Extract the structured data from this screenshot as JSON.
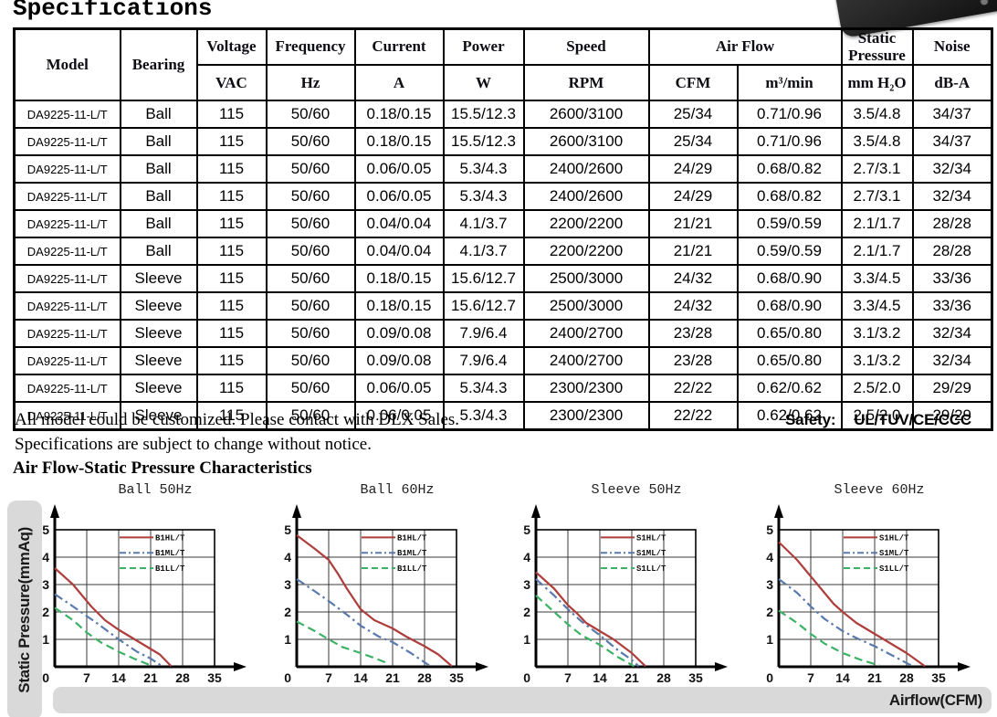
{
  "page": {
    "title": "Specifications",
    "notes": [
      "All model could be customized. Please contact with DLX Sales.",
      "Specifications are subject to change without notice."
    ],
    "safety_label": "Safety:",
    "safety_value": "UL/TUV/CE/CCC",
    "section_title": "Air Flow-Static Pressure Characteristics"
  },
  "table": {
    "header": {
      "model": "Model",
      "bearing": "Bearing",
      "cols": [
        {
          "label": "Voltage",
          "unit": "VAC"
        },
        {
          "label": "Frequency",
          "unit": "Hz"
        },
        {
          "label": "Current",
          "unit": "A"
        },
        {
          "label": "Power",
          "unit": "W"
        },
        {
          "label": "Speed",
          "unit": "RPM"
        }
      ],
      "airflow": {
        "label": "Air Flow",
        "units": [
          "CFM",
          "m³/min"
        ]
      },
      "static_pressure": {
        "label": "Static Pressure",
        "unit": "mm H₂O"
      },
      "noise": {
        "label": "Noise",
        "unit": "dB-A"
      }
    },
    "rows": [
      [
        "DA9225-11-L/T",
        "Ball",
        "115",
        "50/60",
        "0.18/0.15",
        "15.5/12.3",
        "2600/3100",
        "25/34",
        "0.71/0.96",
        "3.5/4.8",
        "34/37"
      ],
      [
        "DA9225-11-L/T",
        "Ball",
        "115",
        "50/60",
        "0.18/0.15",
        "15.5/12.3",
        "2600/3100",
        "25/34",
        "0.71/0.96",
        "3.5/4.8",
        "34/37"
      ],
      [
        "DA9225-11-L/T",
        "Ball",
        "115",
        "50/60",
        "0.06/0.05",
        "5.3/4.3",
        "2400/2600",
        "24/29",
        "0.68/0.82",
        "2.7/3.1",
        "32/34"
      ],
      [
        "DA9225-11-L/T",
        "Ball",
        "115",
        "50/60",
        "0.06/0.05",
        "5.3/4.3",
        "2400/2600",
        "24/29",
        "0.68/0.82",
        "2.7/3.1",
        "32/34"
      ],
      [
        "DA9225-11-L/T",
        "Ball",
        "115",
        "50/60",
        "0.04/0.04",
        "4.1/3.7",
        "2200/2200",
        "21/21",
        "0.59/0.59",
        "2.1/1.7",
        "28/28"
      ],
      [
        "DA9225-11-L/T",
        "Ball",
        "115",
        "50/60",
        "0.04/0.04",
        "4.1/3.7",
        "2200/2200",
        "21/21",
        "0.59/0.59",
        "2.1/1.7",
        "28/28"
      ],
      [
        "DA9225-11-L/T",
        "Sleeve",
        "115",
        "50/60",
        "0.18/0.15",
        "15.6/12.7",
        "2500/3000",
        "24/32",
        "0.68/0.90",
        "3.3/4.5",
        "33/36"
      ],
      [
        "DA9225-11-L/T",
        "Sleeve",
        "115",
        "50/60",
        "0.18/0.15",
        "15.6/12.7",
        "2500/3000",
        "24/32",
        "0.68/0.90",
        "3.3/4.5",
        "33/36"
      ],
      [
        "DA9225-11-L/T",
        "Sleeve",
        "115",
        "50/60",
        "0.09/0.08",
        "7.9/6.4",
        "2400/2700",
        "23/28",
        "0.65/0.80",
        "3.1/3.2",
        "32/34"
      ],
      [
        "DA9225-11-L/T",
        "Sleeve",
        "115",
        "50/60",
        "0.09/0.08",
        "7.9/6.4",
        "2400/2700",
        "23/28",
        "0.65/0.80",
        "3.1/3.2",
        "32/34"
      ],
      [
        "DA9225-11-L/T",
        "Sleeve",
        "115",
        "50/60",
        "0.06/0.05",
        "5.3/4.3",
        "2300/2300",
        "22/22",
        "0.62/0.62",
        "2.5/2.0",
        "29/29"
      ],
      [
        "DA9225-11-L/T",
        "Sleeve",
        "115",
        "50/60",
        "0.06/0.05",
        "5.3/4.3",
        "2300/2300",
        "22/22",
        "0.62/0.62",
        "2.5/2.0",
        "29/29"
      ]
    ]
  },
  "charts": {
    "y_axis_label": "Static Pressure(mmAq)",
    "x_axis_label": "Airflow(CFM)"
  },
  "chart_data": [
    {
      "type": "line",
      "title": "Ball 50Hz",
      "xlabel": "Airflow(CFM)",
      "ylabel": "Static Pressure(mmAq)",
      "xlim": [
        0,
        35
      ],
      "ylim": [
        0,
        5
      ],
      "x_ticks": [
        0,
        7,
        14,
        21,
        28,
        35
      ],
      "y_ticks": [
        0,
        1,
        2,
        3,
        4,
        5
      ],
      "grid": true,
      "legend_position": "top-right",
      "series": [
        {
          "name": "B1HL/T",
          "color": "#ad3e3c",
          "style": "solid",
          "points": [
            [
              0,
              3.6
            ],
            [
              4,
              3.0
            ],
            [
              8,
              2.2
            ],
            [
              11,
              1.7
            ],
            [
              14,
              1.35
            ],
            [
              18,
              0.95
            ],
            [
              21,
              0.65
            ],
            [
              23,
              0.45
            ],
            [
              25.5,
              0.02
            ]
          ]
        },
        {
          "name": "B1ML/T",
          "color": "#5a79ad",
          "style": "dashdot",
          "points": [
            [
              0,
              2.65
            ],
            [
              4,
              2.2
            ],
            [
              7,
              1.85
            ],
            [
              10,
              1.5
            ],
            [
              14,
              1.0
            ],
            [
              18,
              0.55
            ],
            [
              21,
              0.3
            ],
            [
              23.5,
              0.02
            ]
          ]
        },
        {
          "name": "B1LL/T",
          "color": "#3cb266",
          "style": "dashed",
          "points": [
            [
              0,
              2.15
            ],
            [
              4,
              1.7
            ],
            [
              7,
              1.25
            ],
            [
              10,
              0.9
            ],
            [
              14,
              0.55
            ],
            [
              18,
              0.25
            ],
            [
              21.5,
              0.02
            ]
          ]
        }
      ]
    },
    {
      "type": "line",
      "title": "Ball 60Hz",
      "xlabel": "Airflow(CFM)",
      "ylabel": "Static Pressure(mmAq)",
      "xlim": [
        0,
        35
      ],
      "ylim": [
        0,
        5
      ],
      "x_ticks": [
        0,
        7,
        14,
        21,
        28,
        35
      ],
      "y_ticks": [
        0,
        1,
        2,
        3,
        4,
        5
      ],
      "grid": true,
      "legend_position": "top-right",
      "series": [
        {
          "name": "B1HL/T",
          "color": "#ad3e3c",
          "style": "solid",
          "points": [
            [
              0,
              4.8
            ],
            [
              4,
              4.3
            ],
            [
              7,
              3.9
            ],
            [
              9,
              3.4
            ],
            [
              11,
              2.85
            ],
            [
              14,
              2.1
            ],
            [
              17,
              1.7
            ],
            [
              21,
              1.4
            ],
            [
              24,
              1.1
            ],
            [
              28,
              0.75
            ],
            [
              31,
              0.45
            ],
            [
              34,
              0.02
            ]
          ]
        },
        {
          "name": "B1ML/T",
          "color": "#5a79ad",
          "style": "dashdot",
          "points": [
            [
              0,
              3.2
            ],
            [
              4,
              2.75
            ],
            [
              7,
              2.4
            ],
            [
              11,
              1.9
            ],
            [
              14,
              1.5
            ],
            [
              18,
              1.1
            ],
            [
              21,
              0.9
            ],
            [
              25,
              0.5
            ],
            [
              29,
              0.05
            ]
          ]
        },
        {
          "name": "B1LL/T",
          "color": "#3cb266",
          "style": "dashed",
          "points": [
            [
              0,
              1.65
            ],
            [
              4,
              1.3
            ],
            [
              7,
              1.0
            ],
            [
              10,
              0.72
            ],
            [
              14,
              0.5
            ],
            [
              17,
              0.32
            ],
            [
              20,
              0.12
            ]
          ]
        }
      ]
    },
    {
      "type": "line",
      "title": "Sleeve 50Hz",
      "xlabel": "Airflow(CFM)",
      "ylabel": "Static Pressure(mmAq)",
      "xlim": [
        0,
        35
      ],
      "ylim": [
        0,
        5
      ],
      "x_ticks": [
        0,
        7,
        14,
        21,
        28,
        35
      ],
      "y_ticks": [
        0,
        1,
        2,
        3,
        4,
        5
      ],
      "grid": true,
      "legend_position": "top-right",
      "series": [
        {
          "name": "S1HL/T",
          "color": "#ad3e3c",
          "style": "solid",
          "points": [
            [
              0,
              3.45
            ],
            [
              4,
              2.85
            ],
            [
              7,
              2.25
            ],
            [
              9,
              1.95
            ],
            [
              11,
              1.6
            ],
            [
              14,
              1.3
            ],
            [
              17,
              1.0
            ],
            [
              21,
              0.5
            ],
            [
              24,
              0.02
            ]
          ]
        },
        {
          "name": "S1ML/T",
          "color": "#5a79ad",
          "style": "dashdot",
          "points": [
            [
              0,
              3.2
            ],
            [
              4,
              2.6
            ],
            [
              7,
              2.1
            ],
            [
              10,
              1.65
            ],
            [
              14,
              1.15
            ],
            [
              18,
              0.6
            ],
            [
              21,
              0.25
            ],
            [
              22.5,
              0.02
            ]
          ]
        },
        {
          "name": "S1LL/T",
          "color": "#3cb266",
          "style": "dashed",
          "points": [
            [
              0,
              2.6
            ],
            [
              4,
              2.0
            ],
            [
              7,
              1.55
            ],
            [
              10,
              1.15
            ],
            [
              14,
              0.8
            ],
            [
              18,
              0.35
            ],
            [
              21.5,
              0.02
            ]
          ]
        }
      ]
    },
    {
      "type": "line",
      "title": "Sleeve 60Hz",
      "xlabel": "Airflow(CFM)",
      "ylabel": "Static Pressure(mmAq)",
      "xlim": [
        0,
        35
      ],
      "ylim": [
        0,
        5
      ],
      "x_ticks": [
        0,
        7,
        14,
        21,
        28,
        35
      ],
      "y_ticks": [
        0,
        1,
        2,
        3,
        4,
        5
      ],
      "grid": true,
      "legend_position": "top-right",
      "series": [
        {
          "name": "S1HL/T",
          "color": "#ad3e3c",
          "style": "solid",
          "points": [
            [
              0,
              4.55
            ],
            [
              4,
              3.9
            ],
            [
              7,
              3.3
            ],
            [
              10,
              2.7
            ],
            [
              12,
              2.3
            ],
            [
              14,
              2.0
            ],
            [
              17,
              1.6
            ],
            [
              21,
              1.2
            ],
            [
              24,
              0.9
            ],
            [
              28,
              0.5
            ],
            [
              32,
              0.02
            ]
          ]
        },
        {
          "name": "S1ML/T",
          "color": "#5a79ad",
          "style": "dashdot",
          "points": [
            [
              0,
              3.2
            ],
            [
              4,
              2.7
            ],
            [
              7,
              2.2
            ],
            [
              10,
              1.75
            ],
            [
              14,
              1.3
            ],
            [
              17,
              1.05
            ],
            [
              21,
              0.75
            ],
            [
              25,
              0.4
            ],
            [
              29,
              0.05
            ]
          ]
        },
        {
          "name": "S1LL/T",
          "color": "#3cb266",
          "style": "dashed",
          "points": [
            [
              0,
              2.05
            ],
            [
              4,
              1.6
            ],
            [
              7,
              1.2
            ],
            [
              10,
              0.85
            ],
            [
              14,
              0.5
            ],
            [
              18,
              0.25
            ],
            [
              22,
              0.05
            ]
          ]
        }
      ]
    }
  ]
}
